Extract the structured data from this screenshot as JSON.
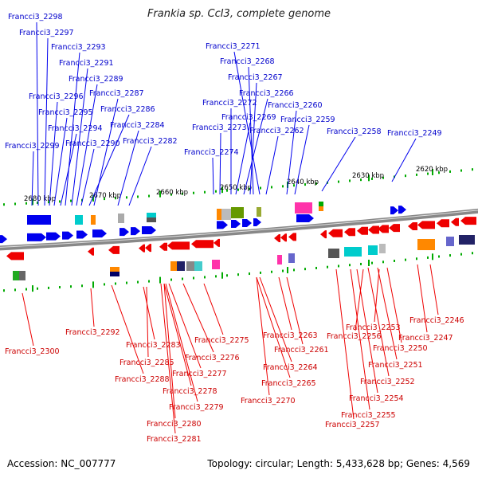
{
  "title": "Frankia sp. CcI3, complete genome",
  "footer": {
    "accession": "Accession: NC_007777",
    "summary": "Topology: circular; Length: 5,433,628 bp; Genes: 4,569"
  },
  "colors": {
    "forward": "#0000ee",
    "reverse": "#ee0000",
    "backbone": "#888888",
    "tick": "#00aa00"
  },
  "kbp_labels": [
    "2680 kbp",
    "2670 kbp",
    "2660 kbp",
    "2650 kbp",
    "2640 kbp",
    "2630 kbp",
    "2620 kbp"
  ],
  "top_genes": [
    "Francci3_2298",
    "Francci3_2297",
    "Francci3_2293",
    "Francci3_2291",
    "Francci3_2289",
    "Francci3_2287",
    "Francci3_2296",
    "Francci3_2286",
    "Francci3_2295",
    "Francci3_2284",
    "Francci3_2294",
    "Francci3_2282",
    "Francci3_2290",
    "Francci3_2299",
    "Francci3_2271",
    "Francci3_2268",
    "Francci3_2267",
    "Francci3_2266",
    "Francci3_2272",
    "Francci3_2260",
    "Francci3_2269",
    "Francci3_2259",
    "Francci3_2273",
    "Francci3_2262",
    "Francci3_2258",
    "Francci3_2249",
    "Francci3_2274"
  ],
  "bottom_genes": [
    "Francci3_2300",
    "Francci3_2292",
    "Francci3_2283",
    "Francci3_2285",
    "Francci3_2288",
    "Francci3_2275",
    "Francci3_2276",
    "Francci3_2277",
    "Francci3_2278",
    "Francci3_2279",
    "Francci3_2280",
    "Francci3_2281",
    "Francci3_2263",
    "Francci3_2261",
    "Francci3_2264",
    "Francci3_2265",
    "Francci3_2270",
    "Francci3_2246",
    "Francci3_2247",
    "Francci3_2253",
    "Francci3_2256",
    "Francci3_2250",
    "Francci3_2251",
    "Francci3_2252",
    "Francci3_2254",
    "Francci3_2255",
    "Francci3_2257"
  ]
}
